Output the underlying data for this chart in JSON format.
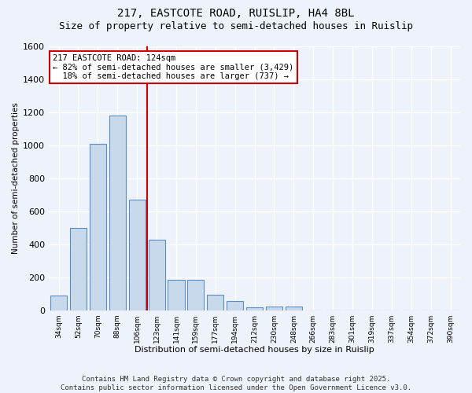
{
  "title_line1": "217, EASTCOTE ROAD, RUISLIP, HA4 8BL",
  "title_line2": "Size of property relative to semi-detached houses in Ruislip",
  "xlabel": "Distribution of semi-detached houses by size in Ruislip",
  "ylabel": "Number of semi-detached properties",
  "footer_line1": "Contains HM Land Registry data © Crown copyright and database right 2025.",
  "footer_line2": "Contains public sector information licensed under the Open Government Licence v3.0.",
  "bin_labels": [
    "34sqm",
    "52sqm",
    "70sqm",
    "88sqm",
    "106sqm",
    "123sqm",
    "141sqm",
    "159sqm",
    "177sqm",
    "194sqm",
    "212sqm",
    "230sqm",
    "248sqm",
    "266sqm",
    "283sqm",
    "301sqm",
    "319sqm",
    "337sqm",
    "354sqm",
    "372sqm",
    "390sqm"
  ],
  "bar_heights": [
    90,
    500,
    1010,
    1180,
    670,
    425,
    185,
    185,
    95,
    55,
    15,
    20,
    20,
    0,
    0,
    0,
    0,
    0,
    0,
    0,
    0
  ],
  "bar_color": "#c9d9ec",
  "bar_edge_color": "#5b8ec4",
  "background_color": "#eef2fb",
  "grid_color": "#ffffff",
  "vline_color": "#cc0000",
  "annotation_text": "217 EASTCOTE ROAD: 124sqm\n← 82% of semi-detached houses are smaller (3,429)\n  18% of semi-detached houses are larger (737) →",
  "annotation_box_color": "#ffffff",
  "annotation_box_edge": "#cc0000",
  "ylim": [
    0,
    1600
  ],
  "yticks": [
    0,
    200,
    400,
    600,
    800,
    1000,
    1200,
    1400,
    1600
  ],
  "title_fontsize": 10,
  "subtitle_fontsize": 9,
  "footer_fontsize": 6.5,
  "annotation_fontsize": 7.5
}
